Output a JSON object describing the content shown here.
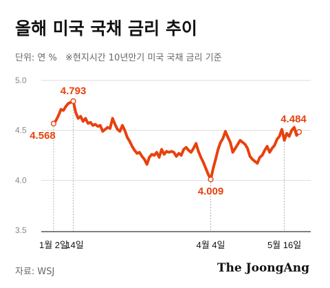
{
  "title": "올해 미국 국채 금리 추이",
  "subtitle": "단위: 연 %",
  "note": "※현지시간 10년만기 미국 국채 금리 기준",
  "source": "자료: WSJ",
  "logo": "The JoongAng",
  "colors": {
    "line": "#e8410e",
    "axis": "#333333",
    "grid": "#dddddd",
    "label": "#e8410e"
  },
  "chart_data": {
    "type": "line",
    "title": "올해 미국 국채 금리 추이",
    "ylabel": "단위: 연 %",
    "ylim": [
      3.5,
      5.0
    ],
    "yticks": [
      "5.0",
      "4.5",
      "4.0",
      "3.5"
    ],
    "ytick_values": [
      5.0,
      4.5,
      4.0,
      3.5
    ],
    "x_labels": [
      "1월 2일",
      "14일",
      "4월 4일",
      "5월 16일"
    ],
    "x_label_index": [
      0,
      8,
      64,
      94
    ],
    "grid": true,
    "series": [
      {
        "values": [
          4.568,
          4.6,
          4.65,
          4.71,
          4.7,
          4.74,
          4.77,
          4.78,
          4.793,
          4.68,
          4.62,
          4.64,
          4.59,
          4.62,
          4.57,
          4.58,
          4.55,
          4.56,
          4.54,
          4.55,
          4.49,
          4.51,
          4.53,
          4.52,
          4.62,
          4.56,
          4.51,
          4.49,
          4.55,
          4.5,
          4.43,
          4.39,
          4.34,
          4.3,
          4.27,
          4.28,
          4.24,
          4.21,
          4.16,
          4.23,
          4.26,
          4.25,
          4.28,
          4.23,
          4.31,
          4.26,
          4.29,
          4.28,
          4.29,
          4.28,
          4.24,
          4.27,
          4.25,
          4.31,
          4.33,
          4.3,
          4.28,
          4.32,
          4.37,
          4.29,
          4.23,
          4.18,
          4.12,
          4.06,
          4.009,
          4.12,
          4.21,
          4.31,
          4.38,
          4.42,
          4.49,
          4.43,
          4.38,
          4.28,
          4.32,
          4.36,
          4.4,
          4.38,
          4.36,
          4.32,
          4.24,
          4.21,
          4.19,
          4.17,
          4.23,
          4.25,
          4.3,
          4.34,
          4.28,
          4.32,
          4.35,
          4.41,
          4.44,
          4.51,
          4.4,
          4.47,
          4.44,
          4.5,
          4.53,
          4.45,
          4.484
        ]
      }
    ],
    "annotations": [
      {
        "index": 0,
        "label": "4.568"
      },
      {
        "index": 8,
        "label": "4.793"
      },
      {
        "index": 64,
        "label": "4.009"
      },
      {
        "index": 100,
        "label": "4.484"
      }
    ]
  }
}
